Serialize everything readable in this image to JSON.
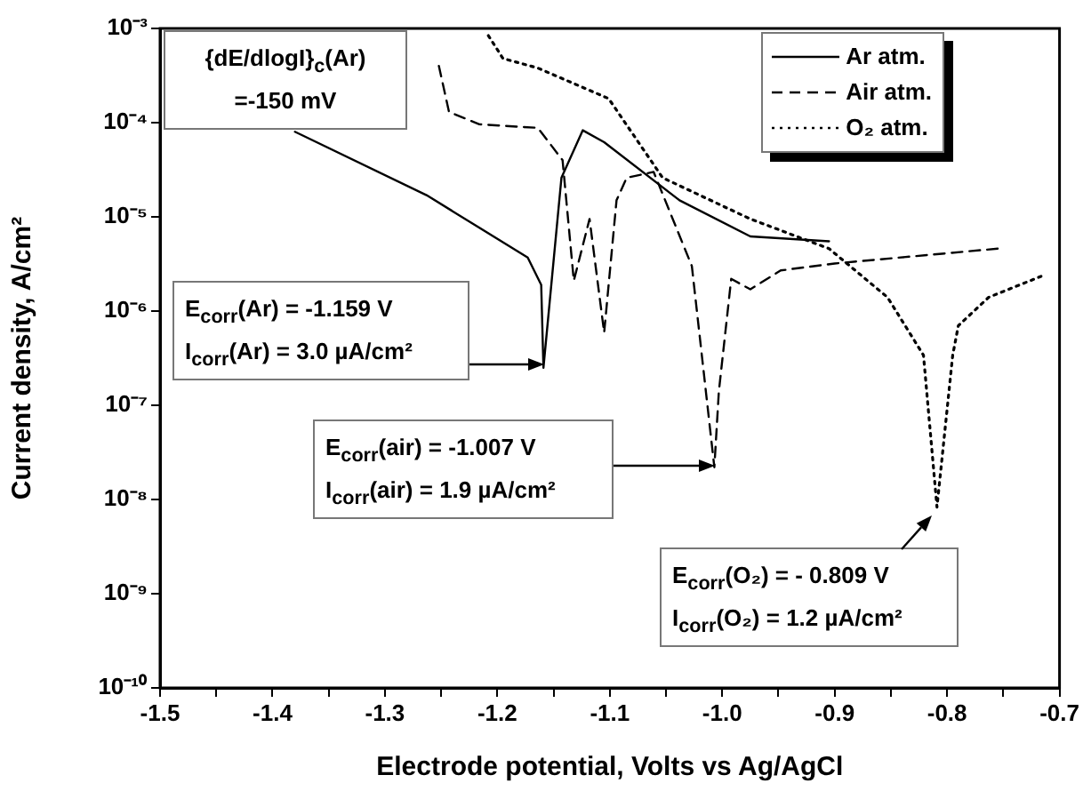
{
  "chart_data": {
    "type": "line",
    "xlabel": "Electrode potential, Volts vs Ag/AgCl",
    "ylabel": "Current density, A/cm²",
    "log": "y",
    "legend": "top right",
    "grid": false,
    "marker": "none",
    "xlim": [
      -1.5,
      -0.7
    ],
    "ylim": [
      1e-10,
      0.001
    ],
    "xticks": [
      {
        "value": -1.5,
        "label": "-1.5"
      },
      {
        "value": -1.45,
        "label": null
      },
      {
        "value": -1.4,
        "label": "-1.4"
      },
      {
        "value": -1.35,
        "label": null
      },
      {
        "value": -1.3,
        "label": "-1.3"
      },
      {
        "value": -1.25,
        "label": null
      },
      {
        "value": -1.2,
        "label": "-1.2"
      },
      {
        "value": -1.15,
        "label": null
      },
      {
        "value": -1.1,
        "label": "-1.1"
      },
      {
        "value": -1.05,
        "label": null
      },
      {
        "value": -1.0,
        "label": "-1.0"
      },
      {
        "value": -0.95,
        "label": null
      },
      {
        "value": -0.9,
        "label": "-0.9"
      },
      {
        "value": -0.85,
        "label": null
      },
      {
        "value": -0.8,
        "label": "-0.8"
      },
      {
        "value": -0.75,
        "label": null
      },
      {
        "value": -0.7,
        "label": "-0.7"
      }
    ],
    "yticks": [
      {
        "value": 1e-10,
        "label": "10⁻¹⁰"
      },
      {
        "value": 1e-09,
        "label": "10⁻⁹"
      },
      {
        "value": 1e-08,
        "label": "10⁻⁸"
      },
      {
        "value": 1e-07,
        "label": "10⁻⁷"
      },
      {
        "value": 1e-06,
        "label": "10⁻⁶"
      },
      {
        "value": 1e-05,
        "label": "10⁻⁵"
      },
      {
        "value": 0.0001,
        "label": "10⁻⁴"
      },
      {
        "value": 0.001,
        "label": "10⁻³"
      }
    ],
    "series": [
      {
        "name": "Ar atm.",
        "color": "#000000",
        "line_style": "solid",
        "x": [
          -1.38,
          -1.263,
          -1.173,
          -1.161,
          -1.159,
          -1.143,
          -1.124,
          -1.105,
          -1.038,
          -0.975,
          -0.905
        ],
        "values": [
          8e-05,
          1.7e-05,
          3.7e-06,
          1.9e-06,
          2.5e-07,
          2.6e-05,
          8.3e-05,
          6.2e-05,
          1.5e-05,
          6.2e-06,
          5.5e-06
        ]
      },
      {
        "name": "Air atm.",
        "color": "#000000",
        "line_style": "dashed",
        "x": [
          -1.252,
          -1.243,
          -1.216,
          -1.164,
          -1.142,
          -1.132,
          -1.118,
          -1.105,
          -1.094,
          -1.085,
          -1.061,
          -1.027,
          -1.007,
          -1.003,
          -0.992,
          -0.975,
          -0.948,
          -0.9,
          -0.755
        ],
        "values": [
          0.0004,
          0.00013,
          9.6e-05,
          8.8e-05,
          4e-05,
          2.1e-06,
          9.5e-06,
          5.9e-07,
          1.5e-05,
          2.6e-05,
          3e-05,
          3e-06,
          2.2e-08,
          1.4e-07,
          2.2e-06,
          1.7e-06,
          2.7e-06,
          3.2e-06,
          4.6e-06
        ]
      },
      {
        "name": "O₂ atm.",
        "color": "#000000",
        "line_style": "dotted",
        "x": [
          -1.208,
          -1.195,
          -1.164,
          -1.101,
          -1.053,
          -0.975,
          -0.905,
          -0.853,
          -0.821,
          -0.809,
          -0.795,
          -0.79,
          -0.763,
          -0.714
        ],
        "values": [
          0.00084,
          0.00048,
          0.00038,
          0.00018,
          2.6e-05,
          9.5e-06,
          4.6e-06,
          1.4e-06,
          3.4e-07,
          8.3e-09,
          3.4e-07,
          7e-07,
          1.4e-06,
          2.4e-06
        ]
      }
    ],
    "annotations": [
      "{dE/dlogI}$_{c}$(Ar)\n=-150 mV",
      "E$_{corr}$(Ar) = -1.159 V\nI$_{corr}$(Ar) = 3.0 µA/cm²",
      "E$_{corr}$(air) = -1.007 V\nI$_{corr}$(air) = 1.9 µA/cm²",
      "E$_{corr}$(O₂) = - 0.809 V\nI$_{corr}$(O₂) = 1.2 µA/cm²"
    ]
  }
}
